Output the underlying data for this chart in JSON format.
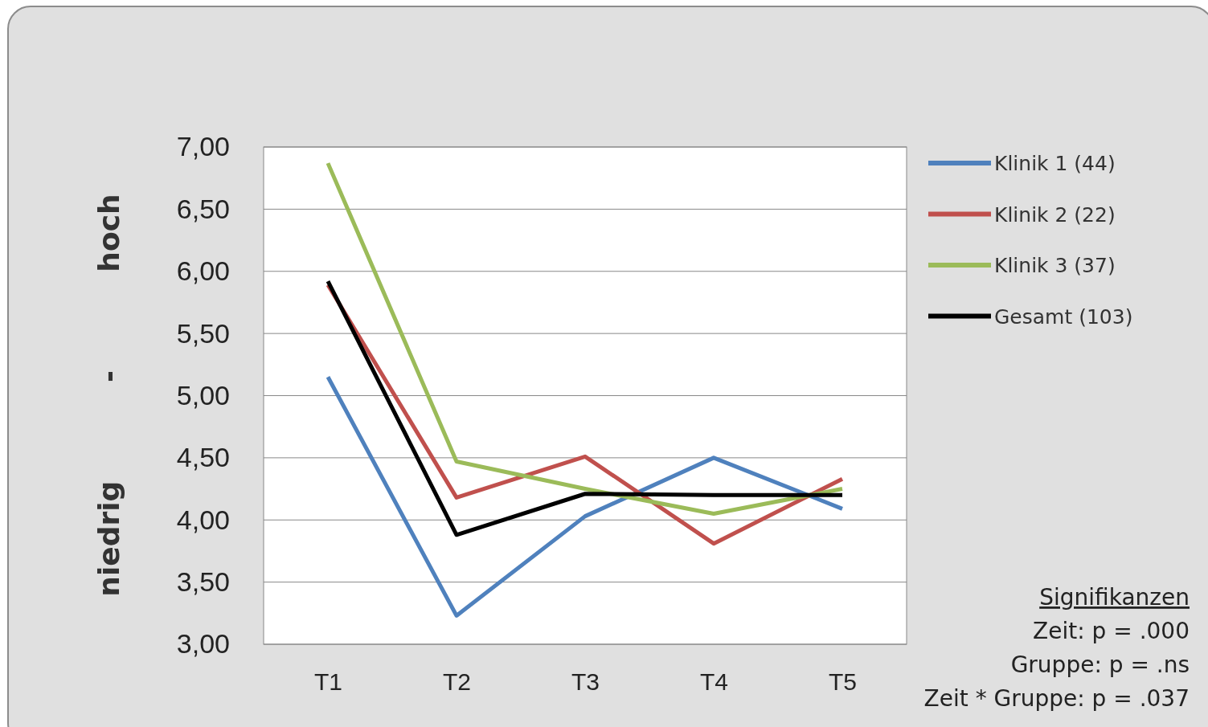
{
  "chart_data": {
    "type": "line",
    "ylabel": "niedrig - hoch",
    "categories": [
      "T1",
      "T2",
      "T3",
      "T4",
      "T5"
    ],
    "series": [
      {
        "name": "Klinik 1 (44)",
        "color": "#4f81bd",
        "values": [
          5.15,
          3.23,
          4.03,
          4.5,
          4.09
        ]
      },
      {
        "name": "Klinik 2 (22)",
        "color": "#c0504d",
        "values": [
          5.89,
          4.18,
          4.51,
          3.81,
          4.33
        ]
      },
      {
        "name": "Klinik 3 (37)",
        "color": "#9bbb59",
        "values": [
          6.87,
          4.47,
          4.25,
          4.05,
          4.25
        ]
      },
      {
        "name": "Gesamt (103)",
        "color": "#000000",
        "values": [
          5.92,
          3.88,
          4.21,
          4.2,
          4.2
        ]
      }
    ],
    "ylim": [
      3,
      7
    ],
    "yticks": [
      {
        "value": 3,
        "label": "3,00"
      },
      {
        "value": 3.5,
        "label": "3,50"
      },
      {
        "value": 4,
        "label": "4,00"
      },
      {
        "value": 4.5,
        "label": "4,50"
      },
      {
        "value": 5,
        "label": "5,00"
      },
      {
        "value": 5.5,
        "label": "5,50"
      },
      {
        "value": 6,
        "label": "6,00"
      },
      {
        "value": 6.5,
        "label": "6,50"
      },
      {
        "value": 7,
        "label": "7,00"
      }
    ],
    "grid": "y",
    "legend": "right",
    "marker": "none",
    "line_style": "solid",
    "annotations": [
      "Signifikanzen",
      "Zeit: p = .000",
      "Gruppe: p = .ns",
      "Zeit * Gruppe: p = .037"
    ]
  }
}
